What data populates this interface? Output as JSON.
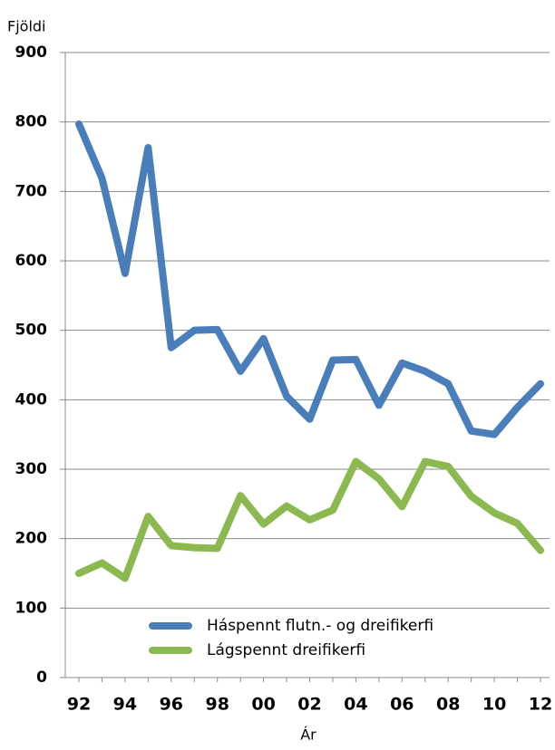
{
  "chart_data": {
    "type": "line",
    "ylabel": "Fjöldi",
    "xlabel": "Ár",
    "categories": [
      "92",
      null,
      "94",
      null,
      "96",
      null,
      "98",
      null,
      "00",
      null,
      "02",
      null,
      "04",
      null,
      "06",
      null,
      "08",
      null,
      "10",
      null,
      "12"
    ],
    "series": [
      {
        "name": "Háspennt flutn.- og dreifikerfi",
        "color": "#4a7ebb",
        "values": [
          797,
          719,
          582,
          763,
          475,
          500,
          501,
          441,
          488,
          405,
          372,
          457,
          458,
          392,
          453,
          441,
          423,
          355,
          350,
          389,
          423
        ]
      },
      {
        "name": "Lágspennt dreifikerfi",
        "color": "#8cb850",
        "values": [
          150,
          165,
          143,
          232,
          190,
          187,
          186,
          262,
          221,
          247,
          227,
          241,
          311,
          286,
          246,
          311,
          304,
          261,
          237,
          222,
          183
        ]
      }
    ],
    "ylim": [
      0,
      900
    ],
    "yticks": [
      0,
      100,
      200,
      300,
      400,
      500,
      600,
      700,
      800,
      900
    ],
    "grid": true
  }
}
